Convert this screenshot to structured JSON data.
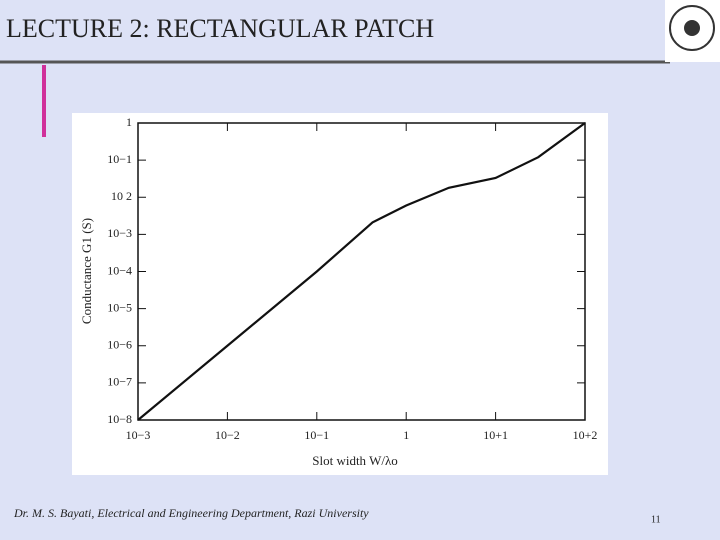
{
  "header": {
    "title": "LECTURE 2: RECTANGULAR PATCH"
  },
  "footer": {
    "text": "Dr. M. S. Bayati, Electrical and Engineering Department, Razi University",
    "page": "11"
  },
  "chart_data": {
    "type": "line",
    "xlabel": "Slot width W/λo",
    "ylabel": "Conductance G1 (S)",
    "x": [
      0.001,
      0.01,
      0.1,
      0.42,
      1,
      3,
      10,
      30,
      100
    ],
    "series": [
      {
        "color": "#111111",
        "values": [
          1e-08,
          1e-06,
          0.0001,
          0.0021,
          0.006,
          0.018,
          0.033,
          0.12,
          1
        ]
      }
    ],
    "xscale": "log",
    "yscale": "log",
    "xlim": [
      0.001,
      100
    ],
    "ylim": [
      1e-08,
      1
    ],
    "xticks": [
      {
        "value": 0.001,
        "label": "10−3"
      },
      {
        "value": 0.01,
        "label": "10−2"
      },
      {
        "value": 0.1,
        "label": "10−1"
      },
      1,
      {
        "value": 10,
        "label": "10+1"
      },
      {
        "value": 100,
        "label": "10+2"
      }
    ],
    "yticks": [
      {
        "value": 1e-08,
        "label": "10−8"
      },
      {
        "value": 1e-07,
        "label": "10−7"
      },
      {
        "value": 1e-06,
        "label": "10−6"
      },
      {
        "value": 1e-05,
        "label": "10−5"
      },
      {
        "value": 0.0001,
        "label": "10−4"
      },
      {
        "value": 0.001,
        "label": "10−3"
      },
      {
        "value": 0.01,
        "label": "10 2"
      },
      {
        "value": 0.1,
        "label": "10−1"
      },
      1
    ]
  }
}
